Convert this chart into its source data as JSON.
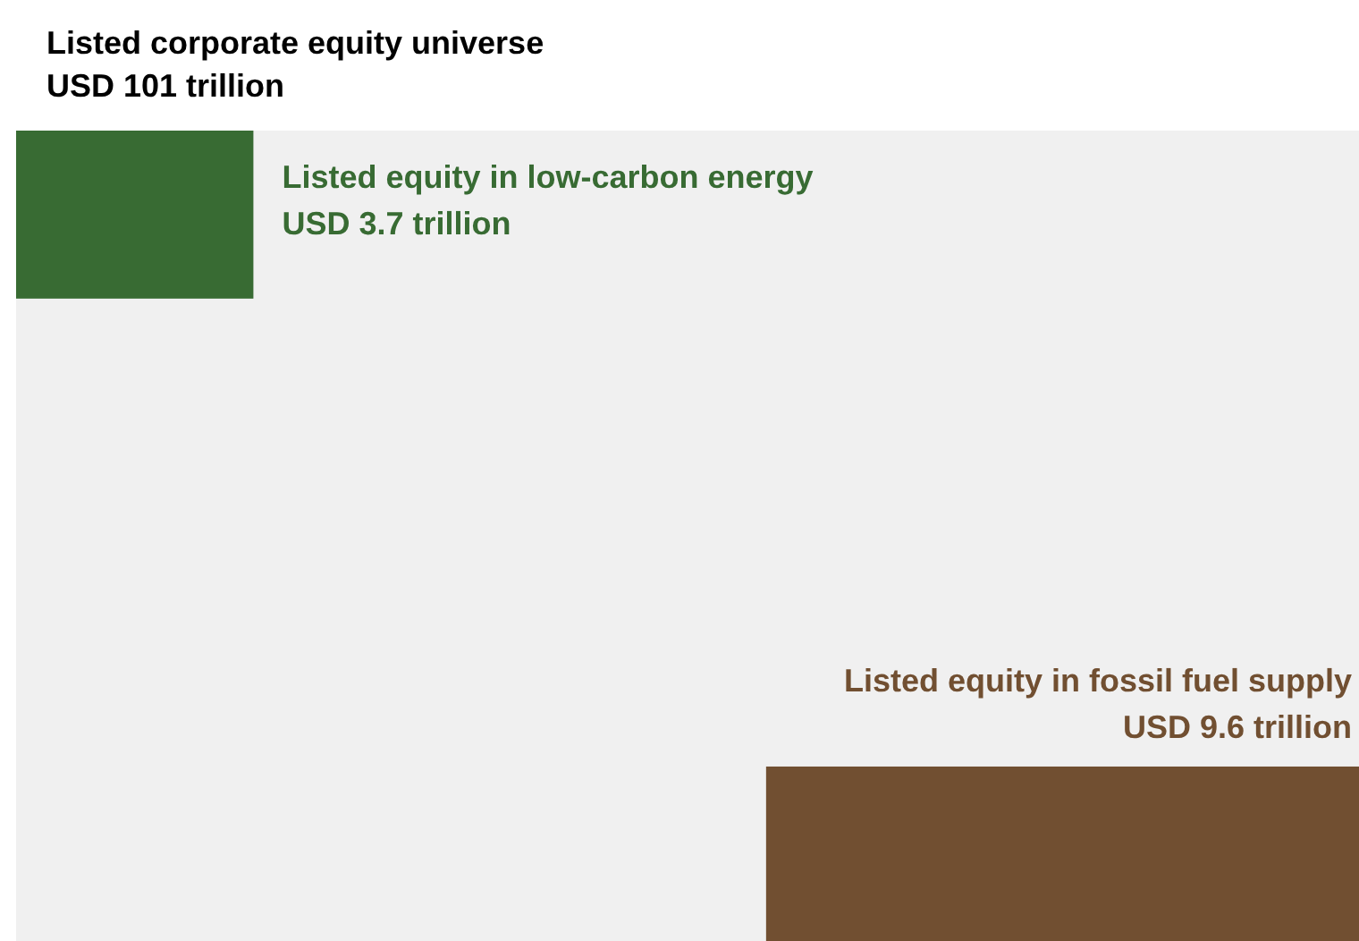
{
  "chart_data": {
    "type": "other",
    "categories": [
      "Listed corporate equity universe",
      "Listed equity in low-carbon energy",
      "Listed equity in fossil fuel supply"
    ],
    "values": [
      101,
      3.7,
      9.6
    ],
    "value_labels": [
      "USD 101 trillion",
      "USD 3.7 trillion",
      "USD 9.6 trillion"
    ],
    "colors": [
      "#f0f0f0",
      "#386b33",
      "#714f31"
    ]
  }
}
